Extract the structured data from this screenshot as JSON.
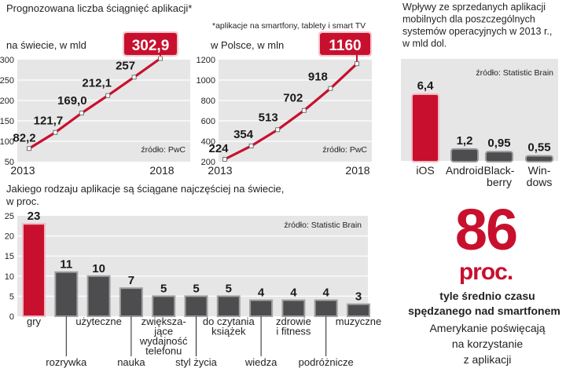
{
  "colors": {
    "accent": "#c8102e",
    "panel": "#e6e6e6",
    "panel_line": "#ffffff",
    "bar_dark": "#4d4d4f",
    "text": "#231f20"
  },
  "chart_data": [
    {
      "type": "line",
      "title": "Prognozowana liczba ściągnięć aplikacji*",
      "subtitle": "na świecie, w mld",
      "x": [
        "2013",
        "2014",
        "2015",
        "2016",
        "2017",
        "2018"
      ],
      "values": [
        82.2,
        121.7,
        169.0,
        212.1,
        257,
        302.9
      ],
      "value_labels": [
        "82,2",
        "121,7",
        "169,0",
        "212,1",
        "257",
        "302,9"
      ],
      "x_tick_labels": [
        "2013",
        "2018"
      ],
      "y_ticks": [
        "50",
        "100",
        "150",
        "200",
        "250",
        "300"
      ],
      "ylim": [
        50,
        300
      ],
      "source": "źródło: PwC"
    },
    {
      "type": "line",
      "note": "*aplikacje na smartfony, tablety i smart TV",
      "subtitle": "w Polsce, w mln",
      "x": [
        "2013",
        "2014",
        "2015",
        "2016",
        "2017",
        "2018"
      ],
      "values": [
        224,
        354,
        513,
        702,
        918,
        1160
      ],
      "value_labels": [
        "224",
        "354",
        "513",
        "702",
        "918",
        "1160"
      ],
      "x_tick_labels": [
        "2013",
        "2018"
      ],
      "y_ticks": [
        "200",
        "400",
        "600",
        "800",
        "1000",
        "1200"
      ],
      "ylim": [
        200,
        1200
      ],
      "source": "źródło: PwC"
    },
    {
      "type": "bar",
      "title": "Wpływy ze sprzedanych aplikacji mobilnych dla poszczególnych systemów operacyjnych w 2013 r., w mld dol.",
      "title_lines": [
        "Wpływy ze sprzedanych aplikacji",
        "mobilnych dla poszczególnych",
        "systemów operacyjnych w 2013 r.,",
        "w mld dol."
      ],
      "categories": [
        "iOS",
        "Android",
        "Blackberry",
        "Windows"
      ],
      "category_lines": [
        [
          "iOS"
        ],
        [
          "Android"
        ],
        [
          "Black-",
          "berry"
        ],
        [
          "Win-",
          "dows"
        ]
      ],
      "values": [
        6.4,
        1.2,
        0.95,
        0.55
      ],
      "value_labels": [
        "6,4",
        "1,2",
        "0,95",
        "0,55"
      ],
      "highlight": "iOS",
      "source": "źródło: Statistic Brain"
    },
    {
      "type": "bar",
      "title": "Jakiego rodzaju aplikacje są ściągane najczęściej na świecie, w proc.",
      "title_lines": [
        "Jakiego rodzaju aplikacje są ściągane najczęściej na świecie,",
        "w proc."
      ],
      "categories": [
        "gry",
        "rozrywka",
        "użyteczne",
        "nauka",
        "zwiększające wydajność telefonu",
        "styl życia",
        "do czytania książek",
        "wiedza",
        "zdrowie i fitness",
        "podróżnicze",
        "muzyczne"
      ],
      "category_lines": [
        [
          "gry"
        ],
        [
          "rozrywka"
        ],
        [
          "użyteczne"
        ],
        [
          "nauka"
        ],
        [
          "zwiększa-",
          "jące",
          "wydajność",
          "telefonu"
        ],
        [
          "styl życia"
        ],
        [
          "do czytania",
          "książek"
        ],
        [
          "wiedza"
        ],
        [
          "zdrowie",
          "i fitness"
        ],
        [
          "podróżnicze"
        ],
        [
          "muzyczne"
        ]
      ],
      "values": [
        23,
        11,
        10,
        7,
        5,
        5,
        5,
        4,
        4,
        4,
        3
      ],
      "y_ticks": [
        "0",
        "5",
        "10",
        "15",
        "20",
        "25"
      ],
      "ylim": [
        0,
        25
      ],
      "highlight": "gry",
      "source": "źródło: Statistic Brain"
    }
  ],
  "stat": {
    "value": "86",
    "unit": "proc.",
    "line1": "tyle średnio czasu",
    "line2": "spędzanego nad smartfonem",
    "line3": "Amerykanie poświęcają",
    "line4": "na korzystanie",
    "line5": "z aplikacji"
  }
}
